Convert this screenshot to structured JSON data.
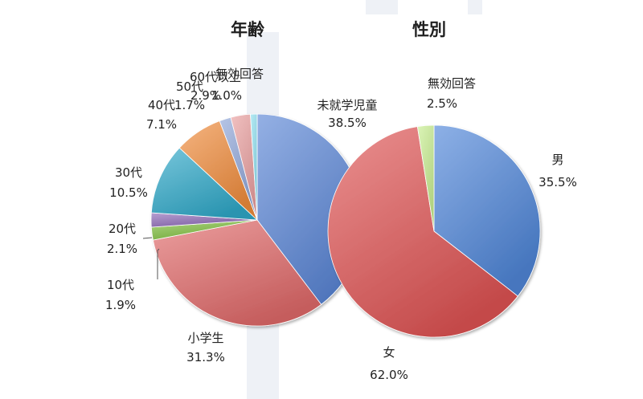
{
  "chart_data": [
    {
      "type": "pie",
      "title": "年齢",
      "categories": [
        "未就学児童",
        "小学生",
        "10代",
        "20代",
        "30代",
        "40代",
        "50代",
        "60代以上",
        "無効回答"
      ],
      "values": [
        38.5,
        31.3,
        1.9,
        2.1,
        10.5,
        7.1,
        1.7,
        2.9,
        1.0
      ],
      "value_labels": [
        "38.5%",
        "31.3%",
        "1.9%",
        "2.1%",
        "10.5%",
        "7.1%",
        "1.7%",
        "2.9%",
        "1.0%"
      ],
      "colors": [
        "#5b86d6",
        "#e06a6a",
        "#7fbf3f",
        "#8e6bb8",
        "#2fa8c8",
        "#f08c3c",
        "#8fa6d8",
        "#eaa0a0",
        "#8fe0f0"
      ]
    },
    {
      "type": "pie",
      "title": "性別",
      "categories": [
        "男",
        "女",
        "無効回答"
      ],
      "values": [
        35.5,
        62.0,
        2.5
      ],
      "value_labels": [
        "35.5%",
        "62.0%",
        "2.5%"
      ],
      "colors": [
        "#4f86d8",
        "#df5454",
        "#c8ee90"
      ]
    }
  ]
}
